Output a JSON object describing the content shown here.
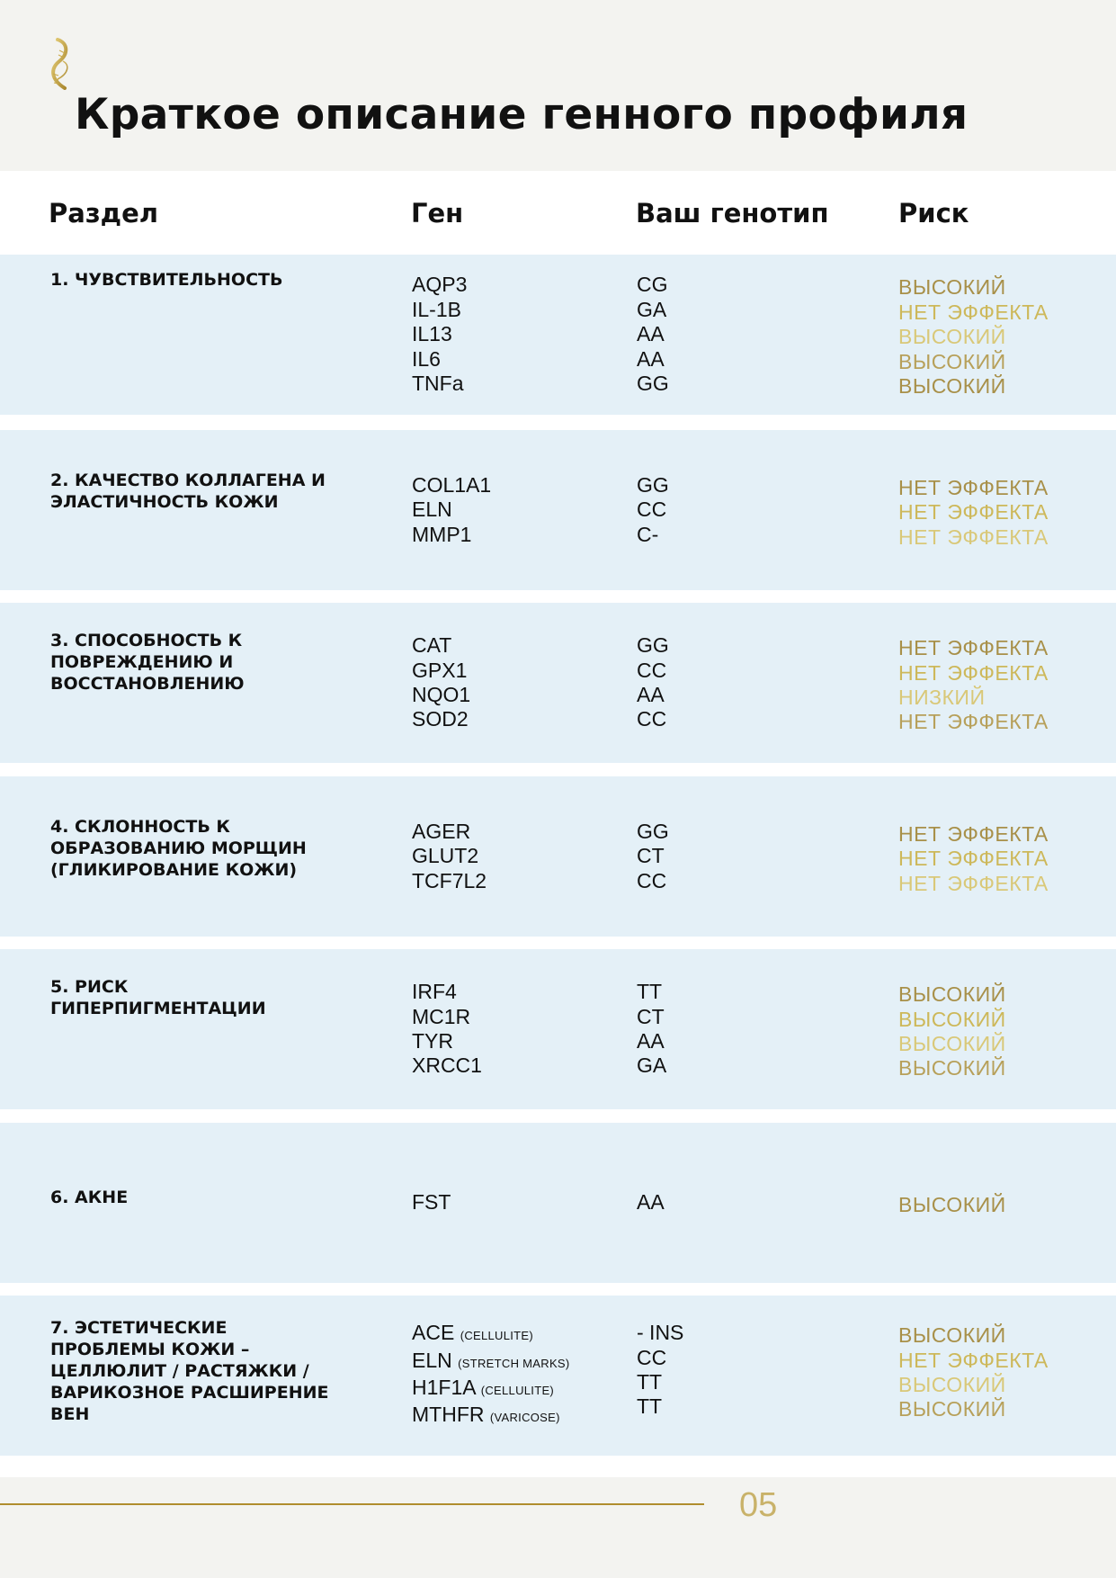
{
  "title": "Краткое описание генного профиля",
  "logo": {
    "icon": "dna-helix-icon",
    "color": "#c9a94a"
  },
  "columns": [
    "Раздел",
    "Ген",
    "Ваш генотип",
    "Риск"
  ],
  "rows": [
    {
      "section": "1. Чувствительность",
      "genes": [
        {
          "name": "AQP3",
          "note": ""
        },
        {
          "name": "IL-1B",
          "note": ""
        },
        {
          "name": "IL13",
          "note": ""
        },
        {
          "name": "IL6",
          "note": ""
        },
        {
          "name": "TNFa",
          "note": ""
        }
      ],
      "genotypes": [
        "CG",
        "GA",
        "AA",
        "AA",
        "GG"
      ],
      "risks": [
        "ВЫСОКИЙ",
        "НЕТ ЭФФЕКТА",
        "ВЫСОКИЙ",
        "ВЫСОКИЙ",
        "ВЫСОКИЙ"
      ]
    },
    {
      "section": "2. Качество коллагена и эластичность кожи",
      "genes": [
        {
          "name": "COL1A1",
          "note": ""
        },
        {
          "name": "ELN",
          "note": ""
        },
        {
          "name": "MMP1",
          "note": ""
        }
      ],
      "genotypes": [
        "GG",
        "CC",
        "C-"
      ],
      "risks": [
        "НЕТ ЭФФЕКТА",
        "НЕТ ЭФФЕКТА",
        "НЕТ ЭФФЕКТА"
      ]
    },
    {
      "section": "3. Способность к повреждению и восстановлению",
      "genes": [
        {
          "name": "CAT",
          "note": ""
        },
        {
          "name": "GPX1",
          "note": ""
        },
        {
          "name": "NQO1",
          "note": ""
        },
        {
          "name": "SOD2",
          "note": ""
        }
      ],
      "genotypes": [
        "GG",
        "CC",
        "AA",
        "CC"
      ],
      "risks": [
        "НЕТ ЭФФЕКТА",
        "НЕТ ЭФФЕКТА",
        "НИЗКИЙ",
        "НЕТ ЭФФЕКТА"
      ]
    },
    {
      "section": "4. Склонность к образованию морщин (гликирование кожи)",
      "genes": [
        {
          "name": "AGER",
          "note": ""
        },
        {
          "name": "GLUT2",
          "note": ""
        },
        {
          "name": "TCF7L2",
          "note": ""
        }
      ],
      "genotypes": [
        "GG",
        "CT",
        "CC"
      ],
      "risks": [
        "НЕТ ЭФФЕКТА",
        "НЕТ ЭФФЕКТА",
        "НЕТ ЭФФЕКТА"
      ]
    },
    {
      "section": "5. Риск гиперпигментации",
      "genes": [
        {
          "name": "IRF4",
          "note": ""
        },
        {
          "name": "MC1R",
          "note": ""
        },
        {
          "name": "TYR",
          "note": ""
        },
        {
          "name": "XRCC1",
          "note": ""
        }
      ],
      "genotypes": [
        "TT",
        "CT",
        "AA",
        "GA"
      ],
      "risks": [
        "ВЫСОКИЙ",
        "ВЫСОКИЙ",
        "ВЫСОКИЙ",
        "ВЫСОКИЙ"
      ]
    },
    {
      "section": "6. Акне",
      "genes": [
        {
          "name": "FST",
          "note": ""
        }
      ],
      "genotypes": [
        "AA"
      ],
      "risks": [
        "ВЫСОКИЙ"
      ]
    },
    {
      "section": "7. Эстетические проблемы кожи – целлюлит / растяжки / варикозное расширение вен",
      "genes": [
        {
          "name": "ACE",
          "note": "(CELLULITE)"
        },
        {
          "name": "ELN",
          "note": "(STRETCH MARKS)"
        },
        {
          "name": "H1F1A",
          "note": "(CELLULITE)"
        },
        {
          "name": "MTHFR",
          "note": "(VARICOSE)"
        }
      ],
      "genotypes": [
        "- INS",
        "CC",
        "TT",
        "TT"
      ],
      "risks": [
        "ВЫСОКИЙ",
        "НЕТ ЭФФЕКТА",
        "ВЫСОКИЙ",
        "ВЫСОКИЙ"
      ]
    }
  ],
  "colors": {
    "risk_gold": "#b8a050",
    "row_bg": "#e4f0f7",
    "page_bg": "#f3f3f0",
    "footer_line": "#b08d2e"
  },
  "footer": {
    "page_number": "05"
  }
}
